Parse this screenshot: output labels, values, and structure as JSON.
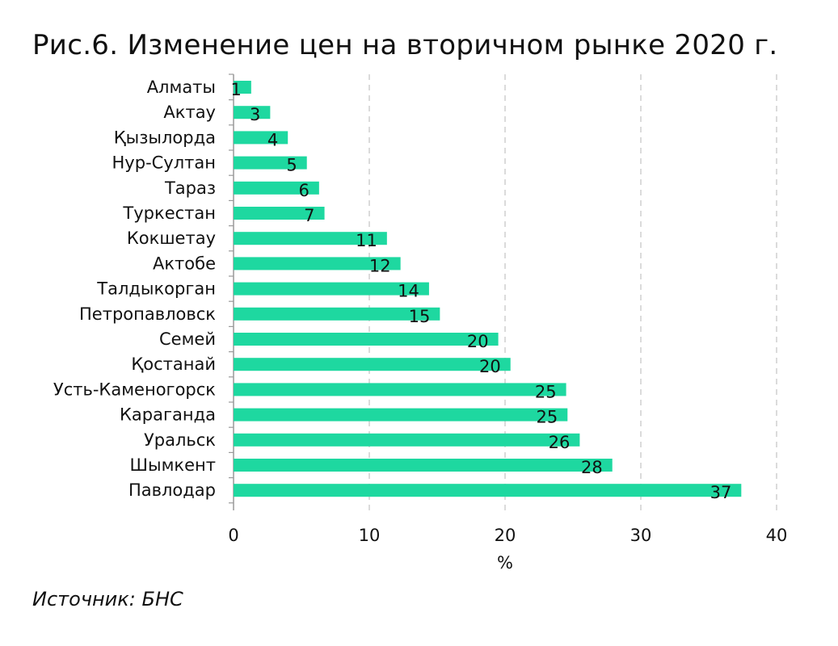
{
  "title": "Рис.6. Изменение цен на вторичном рынке 2020 г.",
  "source": "Источник: БНС",
  "colors": {
    "bar": "#1ed8a0",
    "grid": "#cfcfcf",
    "axis": "#9a9a9a"
  },
  "chart_data": {
    "type": "bar",
    "orientation": "horizontal",
    "categories": [
      "Алматы",
      "Актау",
      "Қызылорда",
      "Нур-Султан",
      "Тараз",
      "Туркестан",
      "Кокшетау",
      "Актобе",
      "Талдыкорган",
      "Петропавловск",
      "Семей",
      "Қостанай",
      "Усть-Каменогорск",
      "Караганда",
      "Уральск",
      "Шымкент",
      "Павлодар"
    ],
    "values": [
      1.3,
      2.7,
      4.0,
      5.4,
      6.3,
      6.7,
      11.3,
      12.3,
      14.4,
      15.2,
      19.5,
      20.4,
      24.5,
      24.6,
      25.5,
      27.9,
      37.4
    ],
    "labels": [
      "1",
      "3",
      "4",
      "5",
      "6",
      "7",
      "11",
      "12",
      "14",
      "15",
      "20",
      "20",
      "25",
      "25",
      "26",
      "28",
      "37"
    ],
    "xlabel": "%",
    "xlim": [
      0,
      40
    ],
    "xticks": [
      "0",
      "10",
      "20",
      "30",
      "40"
    ],
    "grid": "vertical dashed",
    "legend": "none"
  }
}
